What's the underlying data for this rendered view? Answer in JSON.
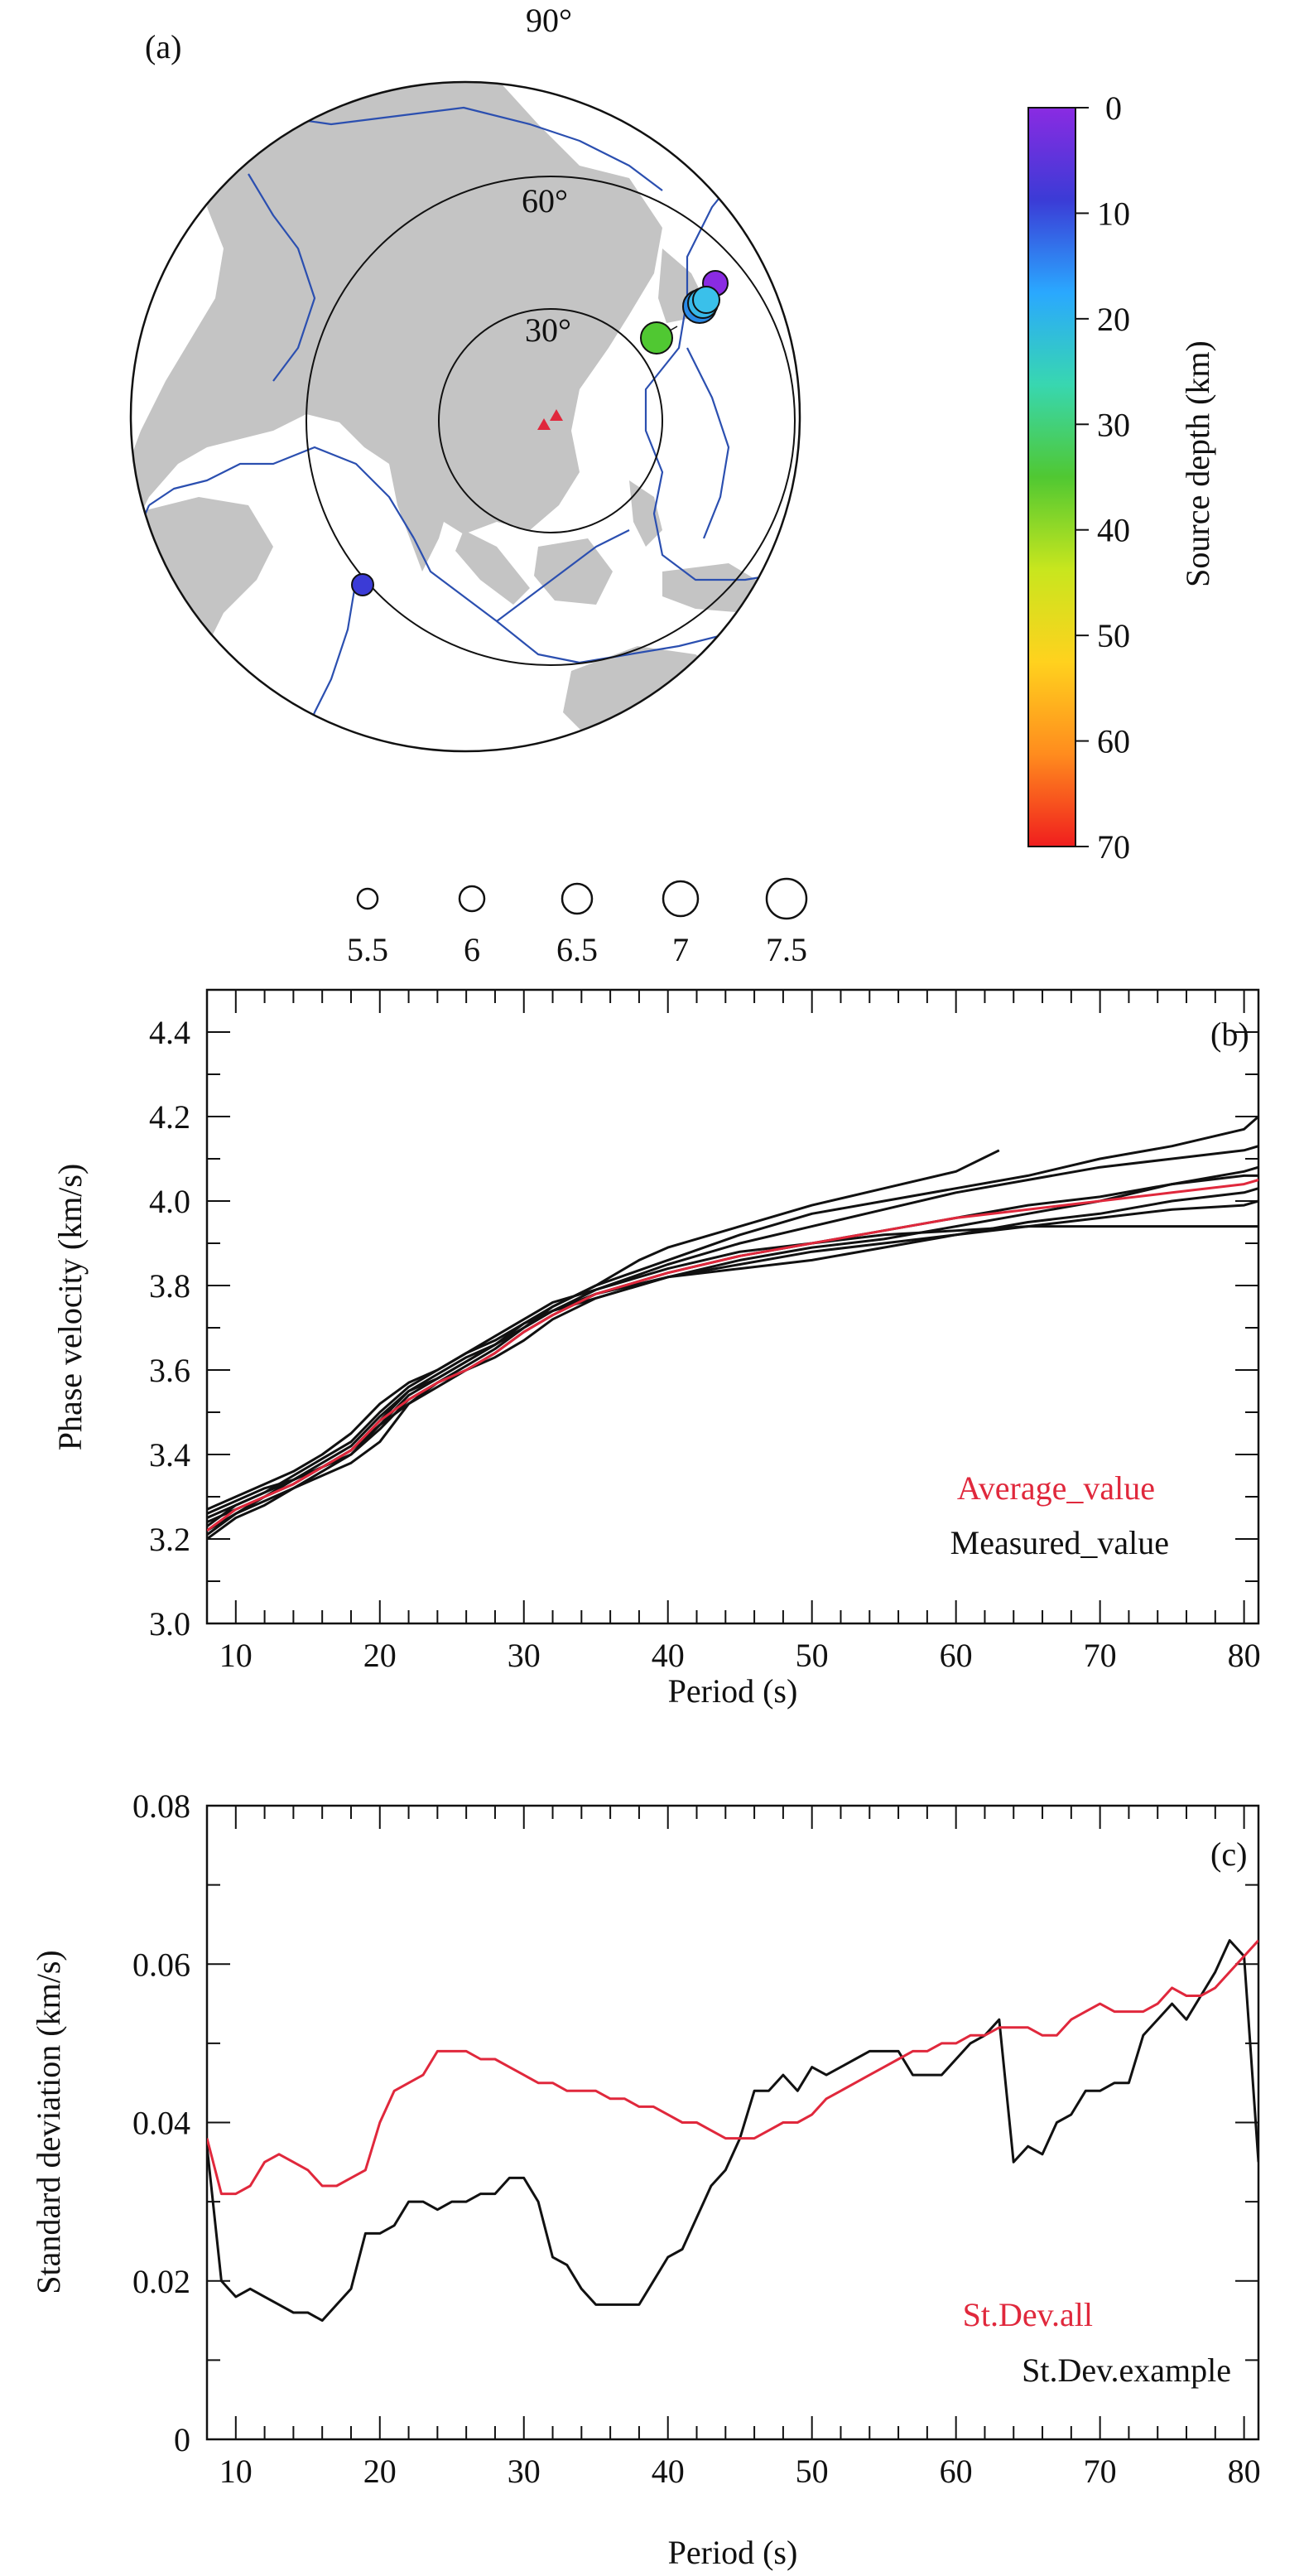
{
  "panel_a": {
    "label": "(a)",
    "ring_labels": [
      "30°",
      "60°",
      "90°"
    ],
    "colorbar": {
      "title": "Source depth (km)",
      "ticks": [
        "0",
        "10",
        "20",
        "30",
        "40",
        "50",
        "60",
        "70"
      ],
      "stops": [
        "#8a2be2",
        "#3b3bd6",
        "#2aa8ff",
        "#38d7b0",
        "#50c832",
        "#c8e61e",
        "#ffd21e",
        "#ff8c1e",
        "#f01e1e"
      ]
    },
    "magnitude_legend": [
      "5.5",
      "6",
      "6.5",
      "7",
      "7.5"
    ],
    "colors": {
      "land": "#c4c4c4",
      "plate_boundary": "#2b4fb0",
      "station": "#e0283c"
    }
  },
  "chart_data": [
    {
      "type": "map",
      "panel": "(a)",
      "projection": "azimuthal equidistant, centred on stations",
      "distance_rings_deg": [
        30,
        60,
        90
      ],
      "stations": [
        {
          "label": "station"
        },
        {
          "label": "station"
        }
      ],
      "events": [
        {
          "depth_km": 4,
          "magnitude": 6.5
        },
        {
          "depth_km": 26,
          "magnitude": 7.0
        },
        {
          "depth_km": 25,
          "magnitude": 6.8
        },
        {
          "depth_km": 28,
          "magnitude": 6.6
        },
        {
          "depth_km": 45,
          "magnitude": 6.6
        },
        {
          "depth_km": 12,
          "magnitude": 6.0
        }
      ],
      "legend": "Source depth (km), colorbar 0–70; circle size = magnitude 5.5–7.5"
    },
    {
      "type": "line",
      "panel": "(b)",
      "xlabel": "Period (s)",
      "ylabel": "Phase velocity (km/s)",
      "xlim": [
        8,
        81
      ],
      "ylim": [
        3.0,
        4.5
      ],
      "xticks": [
        "10",
        "20",
        "30",
        "40",
        "50",
        "60",
        "70",
        "80"
      ],
      "yticks": [
        "3.0",
        "3.2",
        "3.4",
        "3.6",
        "3.8",
        "4.0",
        "4.2",
        "4.4"
      ],
      "legend_position": "bottom-right",
      "series": [
        {
          "name": "Average_value",
          "color": "#e0283c",
          "x": [
            8,
            10,
            12,
            14,
            16,
            18,
            20,
            22,
            24,
            26,
            28,
            30,
            32,
            35,
            38,
            40,
            45,
            50,
            55,
            60,
            65,
            70,
            75,
            80,
            81
          ],
          "y": [
            3.22,
            3.27,
            3.3,
            3.33,
            3.37,
            3.41,
            3.48,
            3.53,
            3.57,
            3.6,
            3.64,
            3.69,
            3.73,
            3.78,
            3.81,
            3.83,
            3.87,
            3.9,
            3.93,
            3.96,
            3.98,
            4.0,
            4.02,
            4.04,
            4.05
          ]
        },
        {
          "name": "Measured_value",
          "color": "#111111",
          "x": [
            8,
            10,
            12,
            14,
            16,
            18,
            20,
            22,
            24,
            26,
            28,
            30,
            32,
            35,
            38,
            40,
            45,
            50,
            55,
            60,
            63
          ],
          "y": [
            3.26,
            3.29,
            3.32,
            3.34,
            3.37,
            3.41,
            3.48,
            3.55,
            3.59,
            3.63,
            3.66,
            3.7,
            3.75,
            3.8,
            3.86,
            3.89,
            3.94,
            3.99,
            4.03,
            4.07,
            4.12
          ]
        },
        {
          "name": "",
          "color": "#111111",
          "x": [
            8,
            10,
            12,
            14,
            16,
            18,
            20,
            22,
            24,
            26,
            28,
            30,
            32,
            35,
            40,
            45,
            50,
            55,
            60,
            65,
            70,
            75,
            80,
            81
          ],
          "y": [
            3.2,
            3.25,
            3.28,
            3.32,
            3.35,
            3.38,
            3.43,
            3.52,
            3.57,
            3.61,
            3.65,
            3.7,
            3.74,
            3.77,
            3.82,
            3.85,
            3.88,
            3.9,
            3.92,
            3.94,
            3.96,
            3.98,
            3.99,
            4.0
          ]
        },
        {
          "name": "",
          "color": "#111111",
          "x": [
            8,
            10,
            12,
            14,
            16,
            18,
            20,
            22,
            24,
            26,
            28,
            30,
            32,
            35,
            40,
            45,
            50,
            55,
            60,
            65,
            70,
            75,
            80,
            81
          ],
          "y": [
            3.23,
            3.28,
            3.31,
            3.34,
            3.38,
            3.42,
            3.49,
            3.55,
            3.58,
            3.62,
            3.66,
            3.71,
            3.75,
            3.8,
            3.86,
            3.92,
            3.97,
            4.0,
            4.03,
            4.06,
            4.1,
            4.13,
            4.17,
            4.2
          ]
        },
        {
          "name": "",
          "color": "#111111",
          "x": [
            8,
            10,
            12,
            14,
            16,
            18,
            20,
            22,
            24,
            26,
            28,
            30,
            32,
            35,
            40,
            45,
            50,
            55,
            60,
            65,
            70,
            75,
            80,
            81
          ],
          "y": [
            3.25,
            3.28,
            3.31,
            3.35,
            3.39,
            3.43,
            3.5,
            3.56,
            3.6,
            3.64,
            3.68,
            3.72,
            3.76,
            3.79,
            3.84,
            3.88,
            3.9,
            3.92,
            3.93,
            3.94,
            3.94,
            3.94,
            3.94,
            3.94
          ]
        },
        {
          "name": "",
          "color": "#111111",
          "x": [
            8,
            10,
            12,
            14,
            16,
            18,
            20,
            22,
            24,
            26,
            28,
            30,
            32,
            35,
            40,
            45,
            50,
            55,
            60,
            65,
            70,
            75,
            80,
            81
          ],
          "y": [
            3.21,
            3.26,
            3.29,
            3.32,
            3.36,
            3.4,
            3.47,
            3.52,
            3.56,
            3.6,
            3.63,
            3.67,
            3.72,
            3.77,
            3.82,
            3.86,
            3.89,
            3.91,
            3.94,
            3.97,
            4.0,
            4.04,
            4.07,
            4.08
          ]
        },
        {
          "name": "",
          "color": "#111111",
          "x": [
            8,
            10,
            12,
            14,
            16,
            18,
            20,
            22,
            24,
            26,
            28,
            30,
            32,
            35,
            40,
            45,
            50,
            55,
            60,
            65,
            70,
            75,
            80,
            81
          ],
          "y": [
            3.27,
            3.3,
            3.33,
            3.36,
            3.4,
            3.45,
            3.52,
            3.57,
            3.6,
            3.64,
            3.67,
            3.71,
            3.74,
            3.78,
            3.83,
            3.87,
            3.9,
            3.93,
            3.96,
            3.99,
            4.01,
            4.04,
            4.06,
            4.06
          ]
        },
        {
          "name": "",
          "color": "#111111",
          "x": [
            8,
            10,
            12,
            14,
            16,
            18,
            20,
            22,
            24,
            26,
            28,
            30,
            32,
            35,
            40,
            45,
            50,
            55,
            60,
            65,
            70,
            75,
            80,
            81
          ],
          "y": [
            3.24,
            3.27,
            3.3,
            3.33,
            3.37,
            3.41,
            3.47,
            3.54,
            3.58,
            3.62,
            3.66,
            3.7,
            3.74,
            3.79,
            3.85,
            3.9,
            3.94,
            3.98,
            4.02,
            4.05,
            4.08,
            4.1,
            4.12,
            4.13
          ]
        },
        {
          "name": "",
          "color": "#111111",
          "x": [
            8,
            10,
            12,
            14,
            16,
            18,
            20,
            22,
            24,
            26,
            28,
            30,
            32,
            35,
            40,
            45,
            50,
            55,
            60,
            65,
            70,
            75,
            80,
            81
          ],
          "y": [
            3.22,
            3.26,
            3.3,
            3.34,
            3.37,
            3.4,
            3.46,
            3.53,
            3.57,
            3.6,
            3.64,
            3.69,
            3.73,
            3.78,
            3.82,
            3.84,
            3.86,
            3.89,
            3.92,
            3.95,
            3.97,
            4.0,
            4.02,
            4.03
          ]
        }
      ]
    },
    {
      "type": "line",
      "panel": "(c)",
      "xlabel": "Period (s)",
      "ylabel": "Standard deviation (km/s)",
      "xlim": [
        8,
        81
      ],
      "ylim": [
        0,
        0.08
      ],
      "xticks": [
        "10",
        "20",
        "30",
        "40",
        "50",
        "60",
        "70",
        "80"
      ],
      "yticks": [
        "0",
        "0.02",
        "0.04",
        "0.06",
        "0.08"
      ],
      "legend_position": "bottom-right",
      "series": [
        {
          "name": "St.Dev.all",
          "color": "#e0283c",
          "x": [
            8,
            9,
            10,
            11,
            12,
            13,
            14,
            15,
            16,
            17,
            18,
            19,
            20,
            21,
            22,
            23,
            24,
            25,
            26,
            27,
            28,
            29,
            30,
            31,
            32,
            33,
            34,
            35,
            36,
            37,
            38,
            39,
            40,
            41,
            42,
            43,
            44,
            45,
            46,
            47,
            48,
            49,
            50,
            51,
            52,
            53,
            54,
            55,
            56,
            57,
            58,
            59,
            60,
            61,
            62,
            63,
            64,
            65,
            66,
            67,
            68,
            69,
            70,
            71,
            72,
            73,
            74,
            75,
            76,
            77,
            78,
            79,
            80,
            81
          ],
          "y": [
            0.038,
            0.031,
            0.031,
            0.032,
            0.035,
            0.036,
            0.035,
            0.034,
            0.032,
            0.032,
            0.033,
            0.034,
            0.04,
            0.044,
            0.045,
            0.046,
            0.049,
            0.049,
            0.049,
            0.048,
            0.048,
            0.047,
            0.046,
            0.045,
            0.045,
            0.044,
            0.044,
            0.044,
            0.043,
            0.043,
            0.042,
            0.042,
            0.041,
            0.04,
            0.04,
            0.039,
            0.038,
            0.038,
            0.038,
            0.039,
            0.04,
            0.04,
            0.041,
            0.043,
            0.044,
            0.045,
            0.046,
            0.047,
            0.048,
            0.049,
            0.049,
            0.05,
            0.05,
            0.051,
            0.051,
            0.052,
            0.052,
            0.052,
            0.051,
            0.051,
            0.053,
            0.054,
            0.055,
            0.054,
            0.054,
            0.054,
            0.055,
            0.057,
            0.056,
            0.056,
            0.057,
            0.059,
            0.061,
            0.063
          ]
        },
        {
          "name": "St.Dev.example",
          "color": "#111111",
          "x": [
            8,
            9,
            10,
            11,
            12,
            13,
            14,
            15,
            16,
            17,
            18,
            19,
            20,
            21,
            22,
            23,
            24,
            25,
            26,
            27,
            28,
            29,
            30,
            31,
            32,
            33,
            34,
            35,
            36,
            37,
            38,
            39,
            40,
            41,
            42,
            43,
            44,
            45,
            46,
            47,
            48,
            49,
            50,
            51,
            52,
            53,
            54,
            55,
            56,
            57,
            58,
            59,
            60,
            61,
            62,
            63,
            64,
            65,
            66,
            67,
            68,
            69,
            70,
            71,
            72,
            73,
            74,
            75,
            76,
            77,
            78,
            79,
            80,
            81
          ],
          "y": [
            0.037,
            0.02,
            0.018,
            0.019,
            0.018,
            0.017,
            0.016,
            0.016,
            0.015,
            0.017,
            0.019,
            0.026,
            0.026,
            0.027,
            0.03,
            0.03,
            0.029,
            0.03,
            0.03,
            0.031,
            0.031,
            0.033,
            0.033,
            0.03,
            0.023,
            0.022,
            0.019,
            0.017,
            0.017,
            0.017,
            0.017,
            0.02,
            0.023,
            0.024,
            0.028,
            0.032,
            0.034,
            0.038,
            0.044,
            0.044,
            0.046,
            0.044,
            0.047,
            0.046,
            0.047,
            0.048,
            0.049,
            0.049,
            0.049,
            0.046,
            0.046,
            0.046,
            0.048,
            0.05,
            0.051,
            0.053,
            0.035,
            0.037,
            0.036,
            0.04,
            0.041,
            0.044,
            0.044,
            0.045,
            0.045,
            0.051,
            0.053,
            0.055,
            0.053,
            0.056,
            0.059,
            0.063,
            0.061,
            0.035
          ]
        }
      ]
    }
  ]
}
